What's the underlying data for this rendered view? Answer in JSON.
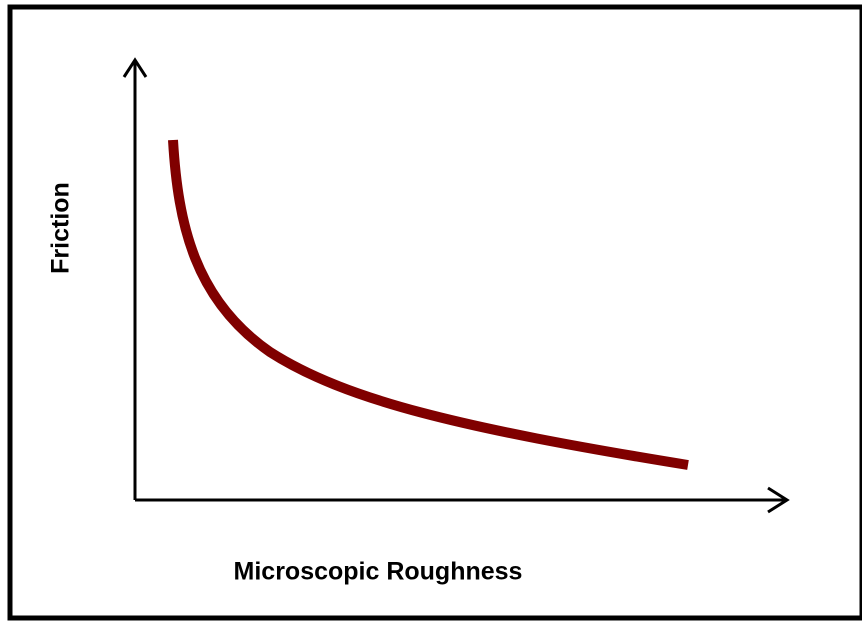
{
  "axes": {
    "y_label": "Friction",
    "x_label": "Microscopic Roughness"
  }
}
